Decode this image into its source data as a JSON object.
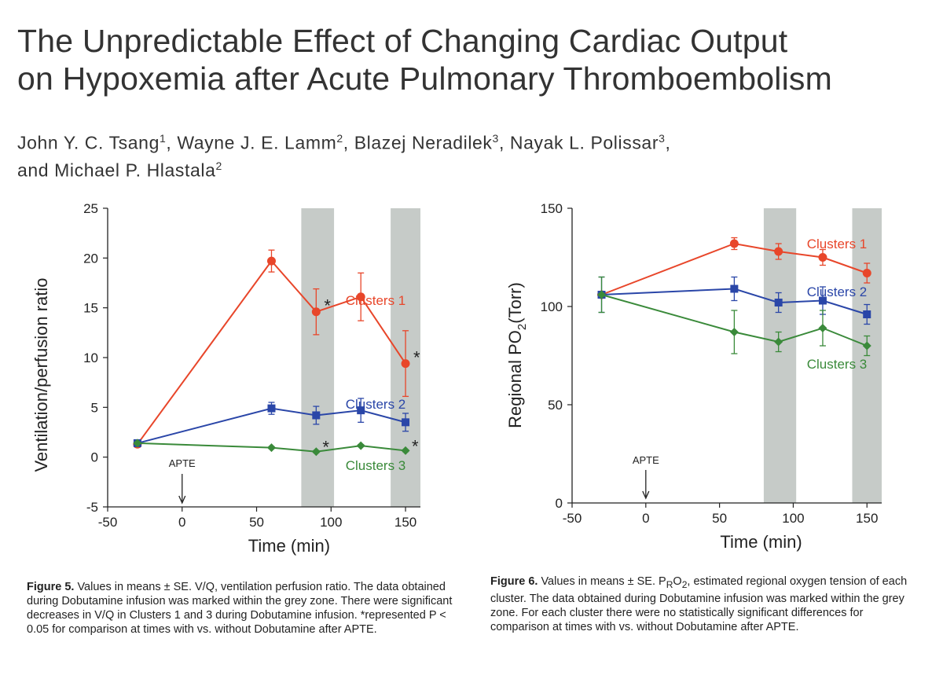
{
  "title": {
    "line1": "The Unpredictable Effect of Changing Cardiac Output",
    "line2": "on Hypoxemia after Acute Pulmonary Thromboembolism"
  },
  "authors": {
    "line1_html": "John Y. C. Tsang<sup>1</sup>, Wayne J. E. Lamm<sup>2</sup>, Blazej Neradilek<sup>3</sup>, Nayak L. Polissar<sup>3</sup>,",
    "line2_html": "and Michael P. Hlastala<sup>2</sup>"
  },
  "colors": {
    "clusters1": "#e8462a",
    "clusters2": "#2a46a8",
    "clusters3": "#3a8a3a",
    "grey_zone": "#c6cbc8"
  },
  "captions": {
    "fig5_label": "Figure 5.",
    "fig5_text": " Values in means ± SE. V/Q, ventilation perfusion ratio. The data obtained during Dobutamine infusion was marked within the grey zone. There were significant decreases in V/Q in Clusters 1 and 3 during Dobutamine infusion. *represented P < 0.05 for comparison at times with vs. without Dobutamine after APTE.",
    "fig6_label": "Figure 6.",
    "fig6_html": " Values in means ± SE. P<sub>R</sub>O<sub>2</sub>, estimated regional oxygen tension of each cluster. The data obtained during Dobutamine infusion was marked within the grey zone. For each cluster there were no statistically significant differences for comparison at times with vs. without Dobutamine after APTE."
  },
  "chart_data": [
    {
      "type": "line",
      "xlabel": "Time (min)",
      "ylabel": "Ventilation/perfusion ratio",
      "xlim": [
        -50,
        160
      ],
      "ylim": [
        -5,
        25
      ],
      "xticks": [
        -50,
        0,
        50,
        100,
        150
      ],
      "yticks": [
        -5,
        0,
        5,
        10,
        15,
        20,
        25
      ],
      "shaded_x": [
        [
          80,
          102
        ],
        [
          140,
          162
        ]
      ],
      "annotation": {
        "text": "APTE",
        "x": 0
      },
      "series": [
        {
          "name": "Clusters 1",
          "marker": "circle",
          "color_key": "clusters1",
          "x": [
            -30,
            60,
            90,
            120,
            150
          ],
          "y": [
            1.3,
            19.7,
            14.6,
            16.1,
            9.4
          ],
          "err": [
            0.3,
            1.1,
            2.3,
            2.4,
            3.3
          ],
          "sig": [
            false,
            false,
            true,
            false,
            true
          ]
        },
        {
          "name": "Clusters 2",
          "marker": "square",
          "color_key": "clusters2",
          "x": [
            -30,
            60,
            90,
            120,
            150
          ],
          "y": [
            1.4,
            4.9,
            4.2,
            4.7,
            3.5
          ],
          "err": [
            0.3,
            0.6,
            0.9,
            1.2,
            0.9
          ],
          "sig": [
            false,
            false,
            false,
            false,
            false
          ]
        },
        {
          "name": "Clusters 3",
          "marker": "diamond",
          "color_key": "clusters3",
          "x": [
            -30,
            60,
            90,
            120,
            150
          ],
          "y": [
            1.4,
            0.95,
            0.55,
            1.15,
            0.65
          ],
          "err": [
            0.1,
            0.1,
            0.1,
            0.1,
            0.1
          ],
          "sig": [
            false,
            false,
            true,
            false,
            true
          ]
        }
      ]
    },
    {
      "type": "line",
      "xlabel": "Time (min)",
      "ylabel": "Regional PO2(Torr)",
      "xlim": [
        -50,
        160
      ],
      "ylim": [
        0,
        150
      ],
      "xticks": [
        -50,
        0,
        50,
        100,
        150
      ],
      "yticks": [
        0,
        50,
        100,
        150
      ],
      "shaded_x": [
        [
          80,
          102
        ],
        [
          140,
          162
        ]
      ],
      "annotation": {
        "text": "APTE",
        "x": 0
      },
      "series": [
        {
          "name": "Clusters 1",
          "marker": "circle",
          "color_key": "clusters1",
          "x": [
            -30,
            60,
            90,
            120,
            150
          ],
          "y": [
            106,
            132,
            128,
            125,
            117
          ],
          "err": [
            1,
            3,
            4,
            4,
            5
          ]
        },
        {
          "name": "Clusters 2",
          "marker": "square",
          "color_key": "clusters2",
          "x": [
            -30,
            60,
            90,
            120,
            150
          ],
          "y": [
            106,
            109,
            102,
            103,
            96
          ],
          "err": [
            9,
            6,
            5,
            7,
            5
          ]
        },
        {
          "name": "Clusters 3",
          "marker": "diamond",
          "color_key": "clusters3",
          "x": [
            -30,
            60,
            90,
            120,
            150
          ],
          "y": [
            106,
            87,
            82,
            89,
            80
          ],
          "err": [
            9,
            11,
            5,
            9,
            5
          ]
        }
      ]
    }
  ]
}
